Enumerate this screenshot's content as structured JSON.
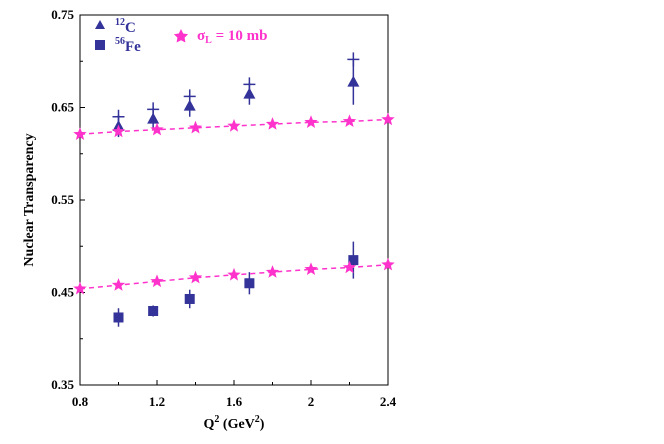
{
  "chart_data": {
    "type": "scatter",
    "title": "",
    "xlabel": {
      "base": "Q",
      "sup": "2",
      "unit_open": " (GeV",
      "unit_sup": "2",
      "unit_close": ")"
    },
    "ylabel": "Nuclear Transparency",
    "xlim": [
      0.8,
      2.4
    ],
    "ylim": [
      0.35,
      0.75
    ],
    "xticks": [
      0.8,
      1.2,
      1.6,
      2,
      2.4
    ],
    "xtick_labels": [
      "0.8",
      "1.2",
      "1.6",
      "2",
      "2.4"
    ],
    "yticks": [
      0.35,
      0.45,
      0.55,
      0.65,
      0.75
    ],
    "ytick_labels": [
      "0.35",
      "0.45",
      "0.55",
      "0.65",
      "0.75"
    ],
    "grid": false,
    "colors": {
      "data": "#333399",
      "model": "#ff33cc",
      "axis": "#000000"
    },
    "legend": {
      "placement": "top-left",
      "carbon": {
        "sup": "12",
        "label": "C"
      },
      "iron": {
        "sup": "56",
        "label": "Fe"
      },
      "model": {
        "sigma": "σ",
        "sub": "L",
        "label": " = 10 mb"
      }
    },
    "series": [
      {
        "name": "12C data",
        "marker": "triangle",
        "x": [
          1.0,
          1.18,
          1.37,
          1.68,
          2.22
        ],
        "y": [
          0.63,
          0.638,
          0.652,
          0.665,
          0.678
        ],
        "yerr": [
          0.012,
          0.012,
          0.012,
          0.012,
          0.025
        ]
      },
      {
        "name": "12C systematic (+)",
        "marker": "plus",
        "x": [
          1.0,
          1.18,
          1.37,
          1.68,
          2.22
        ],
        "y": [
          0.64,
          0.648,
          0.662,
          0.675,
          0.702
        ]
      },
      {
        "name": "56Fe data",
        "marker": "square",
        "x": [
          1.0,
          1.18,
          1.37,
          1.68,
          2.22
        ],
        "y": [
          0.423,
          0.43,
          0.443,
          0.46,
          0.485
        ],
        "yerr": [
          0.01,
          0.006,
          0.01,
          0.012,
          0.02
        ]
      },
      {
        "name": "σL = 10 mb (12C)",
        "marker": "star",
        "x": [
          0.8,
          1.0,
          1.2,
          1.4,
          1.6,
          1.8,
          2.0,
          2.2,
          2.4
        ],
        "y": [
          0.621,
          0.624,
          0.626,
          0.628,
          0.63,
          0.632,
          0.634,
          0.635,
          0.637
        ]
      },
      {
        "name": "σL = 10 mb (56Fe)",
        "marker": "star",
        "x": [
          0.8,
          1.0,
          1.2,
          1.4,
          1.6,
          1.8,
          2.0,
          2.2,
          2.4
        ],
        "y": [
          0.454,
          0.458,
          0.462,
          0.466,
          0.469,
          0.472,
          0.475,
          0.477,
          0.48
        ]
      }
    ]
  }
}
